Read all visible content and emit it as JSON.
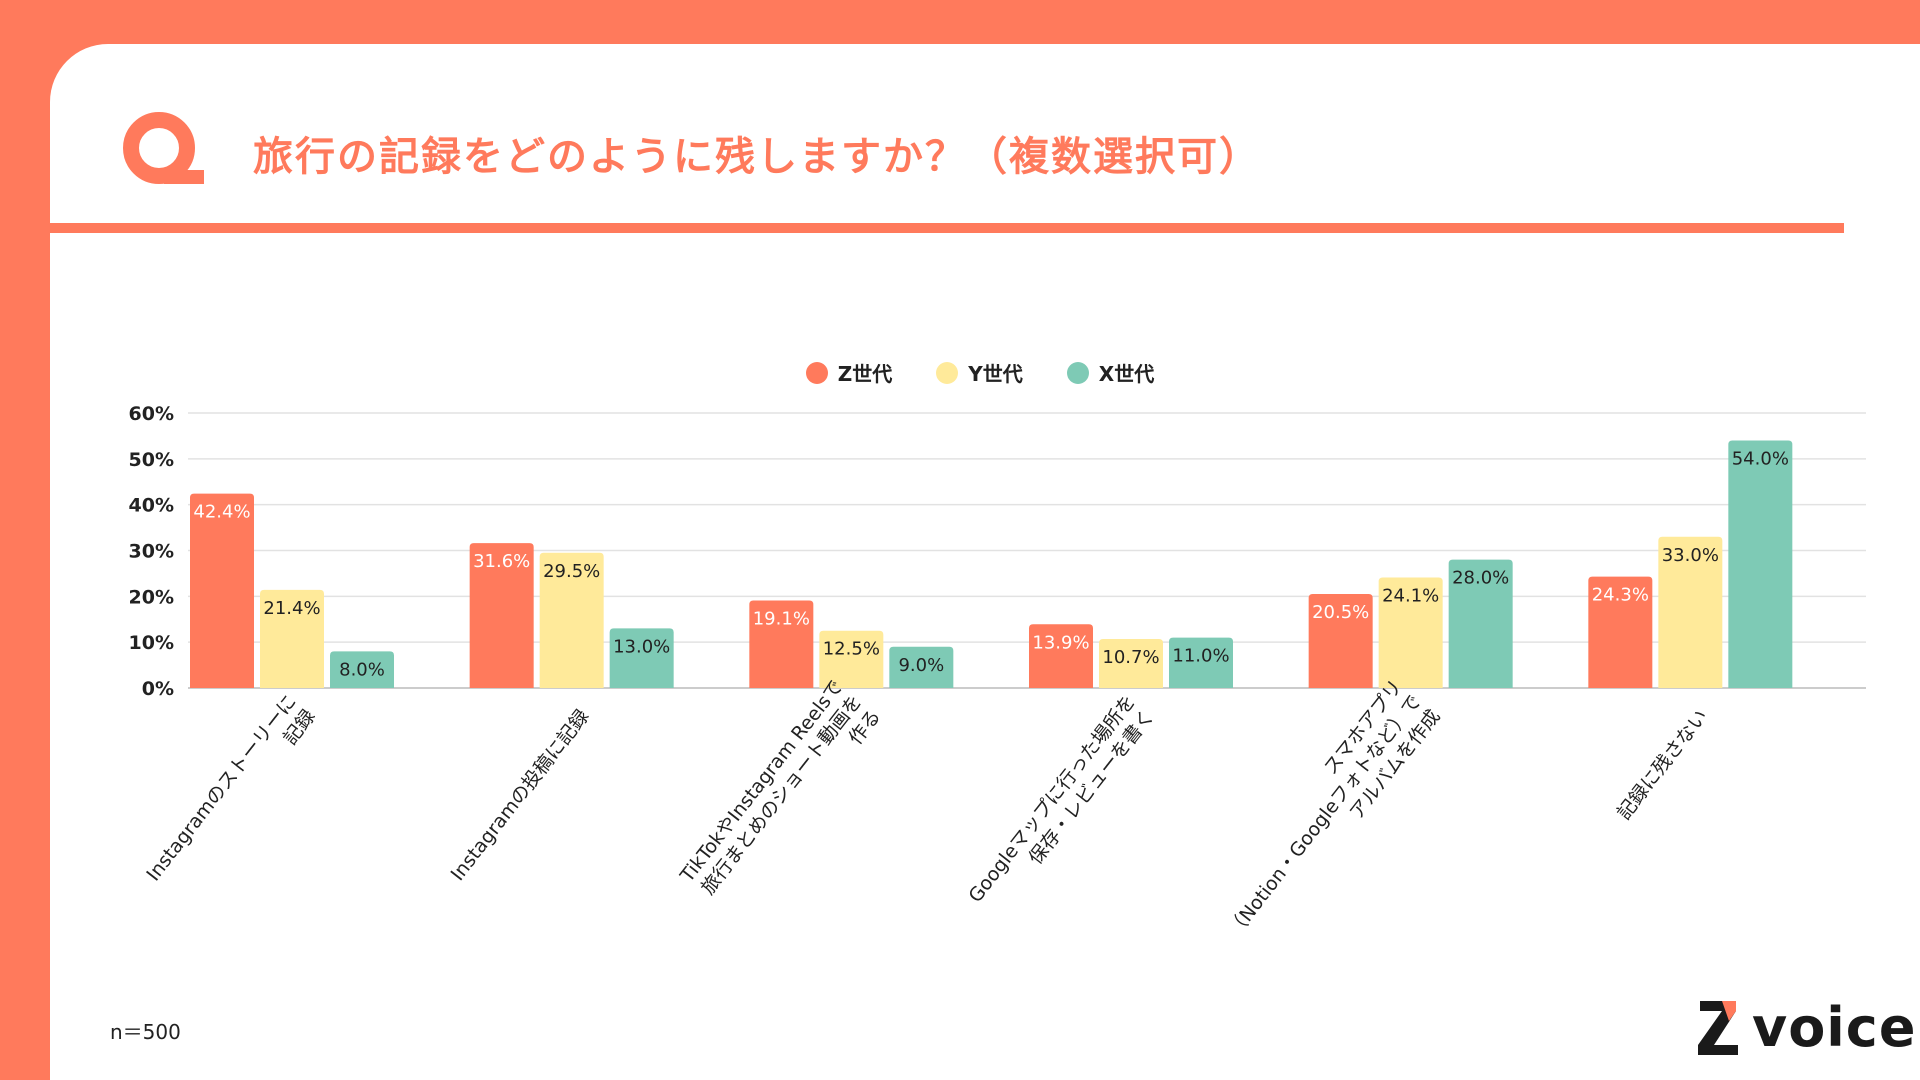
{
  "header": {
    "title": "旅行の記録をどのように残しますか？（複数選択可）"
  },
  "footer": {
    "sample_note": "n＝500",
    "brand": "voice"
  },
  "colors": {
    "accent": "#FF7A5C",
    "z": "#FF7A5C",
    "y": "#FFEA9A",
    "x": "#7ECAB5"
  },
  "chart_data": {
    "type": "bar",
    "categories": [
      [
        "Instagramのストーリーに",
        "記録"
      ],
      [
        "Instagramの投稿に記録"
      ],
      [
        "TikTokやInstagram Reelsで",
        "旅行まとめのショート動画を",
        "作る"
      ],
      [
        "Googleマップに行った場所を",
        "保存・レビューを書く"
      ],
      [
        "スマホアプリ",
        "（Notion・Googleフォトなど）で",
        "アルバムを作成"
      ],
      [
        "記録に残さない"
      ]
    ],
    "series": [
      {
        "name": "Z世代",
        "values": [
          42.4,
          31.6,
          19.1,
          13.9,
          20.5,
          24.3
        ],
        "labels": [
          "42.4%",
          "31.6%",
          "19.1%",
          "13.9%",
          "20.5%",
          "24.3%"
        ]
      },
      {
        "name": "Y世代",
        "values": [
          21.4,
          29.5,
          12.5,
          10.7,
          24.1,
          33.0
        ],
        "labels": [
          "21.4%",
          "29.5%",
          "12.5%",
          "10.7%",
          "24.1%",
          "33.0%"
        ]
      },
      {
        "name": "X世代",
        "values": [
          8.0,
          13.0,
          9.0,
          11.0,
          28.0,
          54.0
        ],
        "labels": [
          "8.0%",
          "13.0%",
          "9.0%",
          "11.0%",
          "28.0%",
          "54.0%"
        ]
      }
    ],
    "yticks": [
      "0%",
      "10%",
      "20%",
      "30%",
      "40%",
      "50%",
      "60%"
    ],
    "ylim": [
      0,
      60
    ],
    "grid": true,
    "legend_position": "top-center"
  }
}
